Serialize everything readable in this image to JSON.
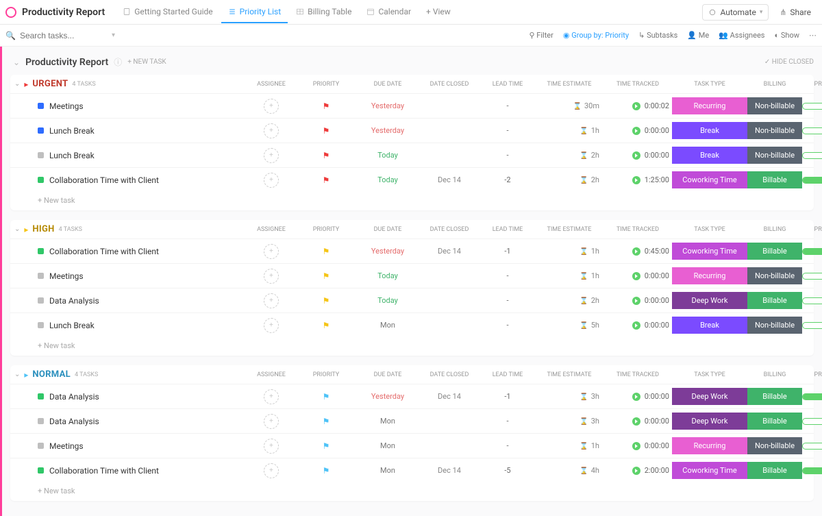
{
  "header": {
    "title": "Productivity Report",
    "tabs": [
      {
        "label": "Getting Started Guide"
      },
      {
        "label": "Priority List"
      },
      {
        "label": "Billing Table"
      },
      {
        "label": "Calendar"
      }
    ],
    "addView": "+ View",
    "automate": "Automate",
    "share": "Share"
  },
  "toolbar": {
    "searchPlaceholder": "Search tasks...",
    "filter": "Filter",
    "groupBy": "Group by: Priority",
    "subtasks": "Subtasks",
    "me": "Me",
    "assignees": "Assignees",
    "show": "Show"
  },
  "list": {
    "title": "Productivity Report",
    "newTask": "+ NEW TASK",
    "hideClosed": "HIDE CLOSED",
    "columns": {
      "assignee": "ASSIGNEE",
      "priority": "PRIORITY",
      "dueDate": "DUE DATE",
      "dateClosed": "DATE CLOSED",
      "leadTime": "LEAD TIME",
      "timeEstimate": "TIME ESTIMATE",
      "timeTracked": "TIME TRACKED",
      "taskType": "TASK TYPE",
      "billing": "BILLING",
      "progress": "PROGRESS"
    },
    "newTaskRow": "+ New task"
  },
  "colors": {
    "urgentFlag": "#ee3b3b",
    "highFlag": "#f5c518",
    "normalFlag": "#4fc3f7",
    "taskType": {
      "Recurring": "#e85fd2",
      "Break": "#7b4bff",
      "Coworking Time": "#c04bd8",
      "Deep Work": "#7d3c98"
    },
    "billing": {
      "Non-billable": "#5a6470",
      "Billable": "#3fb36a"
    },
    "due": {
      "Yesterday": "#e46b6b",
      "Today": "#3fb36a",
      "Mon": "#777777",
      "Dec 14": "#777777"
    },
    "status": {
      "blue": "#2e6cff",
      "gray": "#bfbfbf",
      "green": "#30c768"
    }
  },
  "groups": [
    {
      "name": "URGENT",
      "nameColor": "#c0392b",
      "flagColor": "#ee3b3b",
      "count": "4 TASKS",
      "rows": [
        {
          "status": "blue",
          "task": "Meetings",
          "due": "Yesterday",
          "closed": "",
          "lead": "-",
          "est": "30m",
          "tracked": "0:00:02",
          "type": "Recurring",
          "billing": "Non-billable",
          "progress": 0
        },
        {
          "status": "blue",
          "task": "Lunch Break",
          "due": "Yesterday",
          "closed": "",
          "lead": "-",
          "est": "1h",
          "tracked": "0:00:00",
          "type": "Break",
          "billing": "Non-billable",
          "progress": 0
        },
        {
          "status": "gray",
          "task": "Lunch Break",
          "due": "Today",
          "closed": "",
          "lead": "-",
          "est": "2h",
          "tracked": "0:00:00",
          "type": "Break",
          "billing": "Non-billable",
          "progress": 0
        },
        {
          "status": "green",
          "task": "Collaboration Time with Client",
          "due": "Today",
          "closed": "Dec 14",
          "lead": "-2",
          "est": "2h",
          "tracked": "1:25:00",
          "type": "Coworking Time",
          "billing": "Billable",
          "progress": 100
        }
      ]
    },
    {
      "name": "HIGH",
      "nameColor": "#b58900",
      "flagColor": "#f5c518",
      "count": "4 TASKS",
      "rows": [
        {
          "status": "green",
          "task": "Collaboration Time with Client",
          "due": "Yesterday",
          "closed": "Dec 14",
          "lead": "-1",
          "est": "1h",
          "tracked": "0:45:00",
          "type": "Coworking Time",
          "billing": "Billable",
          "progress": 100
        },
        {
          "status": "gray",
          "task": "Meetings",
          "due": "Today",
          "closed": "",
          "lead": "-",
          "est": "1h",
          "tracked": "0:00:00",
          "type": "Recurring",
          "billing": "Non-billable",
          "progress": 0
        },
        {
          "status": "gray",
          "task": "Data Analysis",
          "due": "Today",
          "closed": "",
          "lead": "-",
          "est": "2h",
          "tracked": "0:00:00",
          "type": "Deep Work",
          "billing": "Billable",
          "progress": 0
        },
        {
          "status": "gray",
          "task": "Lunch Break",
          "due": "Mon",
          "closed": "",
          "lead": "-",
          "est": "5h",
          "tracked": "0:00:00",
          "type": "Break",
          "billing": "Non-billable",
          "progress": 0
        }
      ]
    },
    {
      "name": "NORMAL",
      "nameColor": "#2a8fbd",
      "flagColor": "#4fc3f7",
      "count": "4 TASKS",
      "rows": [
        {
          "status": "green",
          "task": "Data Analysis",
          "due": "Yesterday",
          "closed": "Dec 14",
          "lead": "-1",
          "est": "3h",
          "tracked": "0:00:00",
          "type": "Deep Work",
          "billing": "Billable",
          "progress": 100
        },
        {
          "status": "gray",
          "task": "Data Analysis",
          "due": "Mon",
          "closed": "",
          "lead": "-",
          "est": "3h",
          "tracked": "0:00:00",
          "type": "Deep Work",
          "billing": "Billable",
          "progress": 0
        },
        {
          "status": "gray",
          "task": "Meetings",
          "due": "Mon",
          "closed": "",
          "lead": "-",
          "est": "1h",
          "tracked": "0:00:00",
          "type": "Recurring",
          "billing": "Non-billable",
          "progress": 0
        },
        {
          "status": "green",
          "task": "Collaboration Time with Client",
          "due": "Mon",
          "closed": "Dec 14",
          "lead": "-5",
          "est": "4h",
          "tracked": "2:00:00",
          "type": "Coworking Time",
          "billing": "Billable",
          "progress": 100
        }
      ]
    }
  ]
}
